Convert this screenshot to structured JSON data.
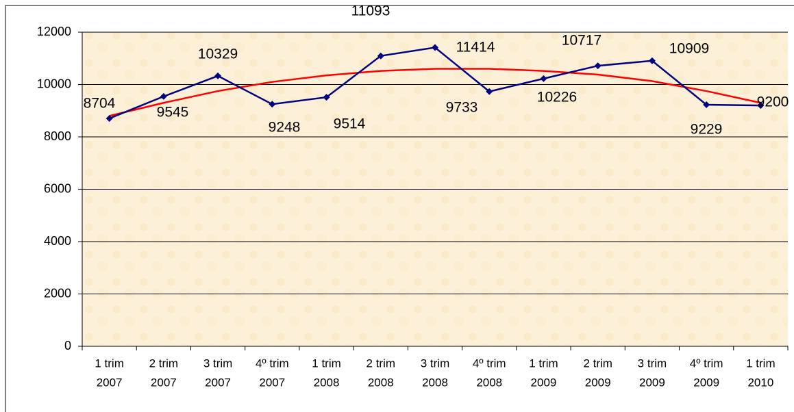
{
  "chart_data": {
    "type": "line",
    "categories": [
      [
        "1 trim",
        "2007"
      ],
      [
        "2 trim",
        "2007"
      ],
      [
        "3 trim",
        "2007"
      ],
      [
        "4º trim",
        "2007"
      ],
      [
        "1 trim",
        "2008"
      ],
      [
        "2 trim",
        "2008"
      ],
      [
        "3 trim",
        "2008"
      ],
      [
        "4º trim",
        "2008"
      ],
      [
        "1 trim",
        "2009"
      ],
      [
        "2 trim",
        "2009"
      ],
      [
        "3 trim",
        "2009"
      ],
      [
        "4º trim",
        "2009"
      ],
      [
        "1 trim",
        "2010"
      ]
    ],
    "series": [
      {
        "color": "#000080",
        "marker": "diamond",
        "values": [
          8704,
          9545,
          10329,
          9248,
          9514,
          11093,
          11414,
          9733,
          10226,
          10717,
          10909,
          9229,
          9200
        ]
      },
      {
        "color": "#ff0000",
        "values": [
          8800,
          9300,
          9750,
          10100,
          10350,
          10520,
          10600,
          10600,
          10520,
          10380,
          10130,
          9750,
          9300
        ]
      }
    ],
    "ylim": [
      0,
      12000
    ],
    "yticks": [
      0,
      2000,
      4000,
      6000,
      8000,
      10000,
      12000
    ],
    "grid": true
  }
}
